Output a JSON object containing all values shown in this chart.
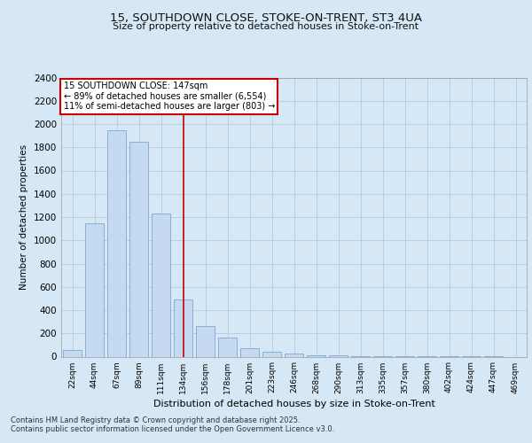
{
  "title1": "15, SOUTHDOWN CLOSE, STOKE-ON-TRENT, ST3 4UA",
  "title2": "Size of property relative to detached houses in Stoke-on-Trent",
  "xlabel": "Distribution of detached houses by size in Stoke-on-Trent",
  "ylabel": "Number of detached properties",
  "categories": [
    "22sqm",
    "44sqm",
    "67sqm",
    "89sqm",
    "111sqm",
    "134sqm",
    "156sqm",
    "178sqm",
    "201sqm",
    "223sqm",
    "246sqm",
    "268sqm",
    "290sqm",
    "313sqm",
    "335sqm",
    "357sqm",
    "380sqm",
    "402sqm",
    "424sqm",
    "447sqm",
    "469sqm"
  ],
  "values": [
    55,
    1150,
    1950,
    1850,
    1230,
    490,
    260,
    165,
    75,
    45,
    30,
    15,
    8,
    5,
    3,
    2,
    2,
    1,
    1,
    1,
    0
  ],
  "bar_color": "#c5d9f1",
  "bar_edge_color": "#7aa8d2",
  "vline_color": "#cc0000",
  "annotation_title": "15 SOUTHDOWN CLOSE: 147sqm",
  "annotation_line1": "← 89% of detached houses are smaller (6,554)",
  "annotation_line2": "11% of semi-detached houses are larger (803) →",
  "box_facecolor": "#ffffff",
  "box_edgecolor": "#cc0000",
  "grid_color": "#b8cfe0",
  "bg_color": "#d6e8f5",
  "fig_bg_color": "#d6e8f5",
  "footnote1": "Contains HM Land Registry data © Crown copyright and database right 2025.",
  "footnote2": "Contains public sector information licensed under the Open Government Licence v3.0.",
  "ylim": [
    0,
    2400
  ],
  "yticks": [
    0,
    200,
    400,
    600,
    800,
    1000,
    1200,
    1400,
    1600,
    1800,
    2000,
    2200,
    2400
  ]
}
